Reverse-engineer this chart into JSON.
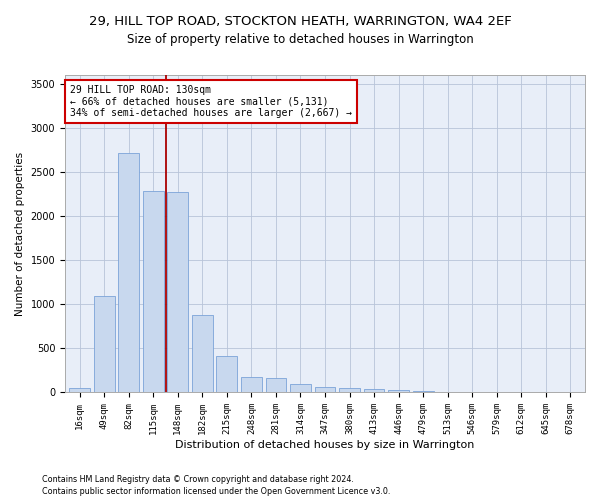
{
  "title1": "29, HILL TOP ROAD, STOCKTON HEATH, WARRINGTON, WA4 2EF",
  "title2": "Size of property relative to detached houses in Warrington",
  "xlabel": "Distribution of detached houses by size in Warrington",
  "ylabel": "Number of detached properties",
  "bar_color": "#c8d8ee",
  "bar_edge_color": "#7ba3d8",
  "categories": [
    "16sqm",
    "49sqm",
    "82sqm",
    "115sqm",
    "148sqm",
    "182sqm",
    "215sqm",
    "248sqm",
    "281sqm",
    "314sqm",
    "347sqm",
    "380sqm",
    "413sqm",
    "446sqm",
    "479sqm",
    "513sqm",
    "546sqm",
    "579sqm",
    "612sqm",
    "645sqm",
    "678sqm"
  ],
  "values": [
    50,
    1090,
    2710,
    2280,
    2270,
    880,
    415,
    170,
    165,
    95,
    60,
    50,
    40,
    25,
    20,
    10,
    5,
    3,
    2,
    1,
    0
  ],
  "ylim": [
    0,
    3600
  ],
  "yticks": [
    0,
    500,
    1000,
    1500,
    2000,
    2500,
    3000,
    3500
  ],
  "property_line_x": 3.5,
  "annotation_text": "29 HILL TOP ROAD: 130sqm\n← 66% of detached houses are smaller (5,131)\n34% of semi-detached houses are larger (2,667) →",
  "annotation_box_color": "#ffffff",
  "annotation_box_edge": "#cc0000",
  "vline_color": "#aa0000",
  "footer1": "Contains HM Land Registry data © Crown copyright and database right 2024.",
  "footer2": "Contains public sector information licensed under the Open Government Licence v3.0.",
  "bg_color": "#e8eef8",
  "title1_fontsize": 9.5,
  "title2_fontsize": 8.5,
  "xlabel_fontsize": 8,
  "ylabel_fontsize": 7.5,
  "tick_fontsize": 6.5,
  "annot_fontsize": 7,
  "footer_fontsize": 5.8
}
